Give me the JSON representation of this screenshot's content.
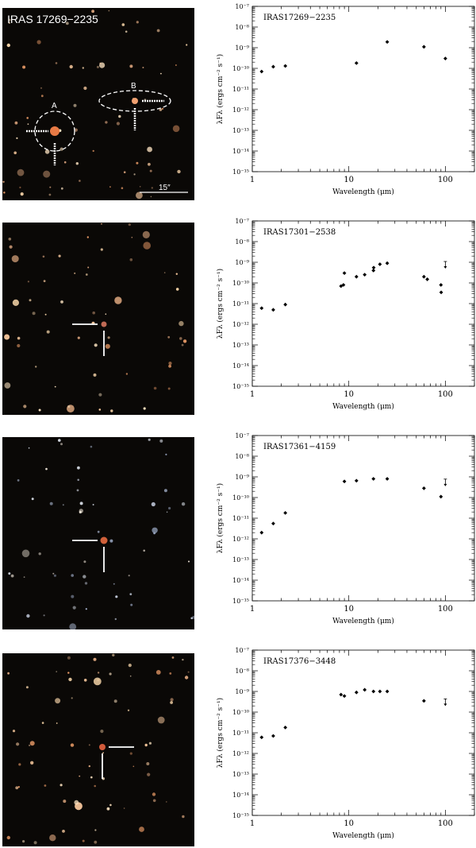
{
  "panels": [
    {
      "image": {
        "caption": "IRAS 17269−2235",
        "marker_a": "A",
        "marker_b": "B",
        "scale_label": "15″"
      },
      "chart_data": {
        "type": "scatter",
        "label": "IRAS17269−2235",
        "xlabel": "Wavelength (μm)",
        "ylabel": "λFλ (ergs cm⁻² s⁻¹)",
        "x_scale": "log",
        "y_scale": "log",
        "xlim": [
          1,
          200
        ],
        "ylim": [
          1e-15,
          1e-07
        ],
        "x_ticks": [
          {
            "v": 1,
            "t": "1"
          },
          {
            "v": 10,
            "t": "10"
          },
          {
            "v": 100,
            "t": "100"
          }
        ],
        "points": [
          [
            1.25,
            7e-11
          ],
          [
            1.65,
            1.2e-10
          ],
          [
            2.2,
            1.3e-10
          ],
          [
            12,
            1.8e-10
          ],
          [
            25,
            1.9e-09
          ],
          [
            60,
            1.1e-09
          ],
          [
            100,
            3e-10
          ]
        ],
        "upper_limits": []
      }
    },
    {
      "image": {},
      "chart_data": {
        "type": "scatter",
        "label": "IRAS17301−2538",
        "xlabel": "Wavelength (μm)",
        "ylabel": "λFλ (ergs cm⁻² s⁻¹)",
        "x_scale": "log",
        "y_scale": "log",
        "xlim": [
          1,
          200
        ],
        "ylim": [
          1e-15,
          1e-07
        ],
        "x_ticks": [
          {
            "v": 1,
            "t": "1"
          },
          {
            "v": 10,
            "t": "10"
          },
          {
            "v": 100,
            "t": "100"
          }
        ],
        "points": [
          [
            1.25,
            6e-12
          ],
          [
            1.65,
            5e-12
          ],
          [
            2.2,
            9e-12
          ],
          [
            8.3,
            7e-11
          ],
          [
            8.8,
            8e-11
          ],
          [
            9,
            3e-10
          ],
          [
            12,
            2e-10
          ],
          [
            14.6,
            2.5e-10
          ],
          [
            18,
            4e-10
          ],
          [
            18.1,
            5.5e-10
          ],
          [
            21,
            8e-10
          ],
          [
            25,
            9e-10
          ],
          [
            60,
            2e-10
          ],
          [
            65,
            1.5e-10
          ],
          [
            90,
            8e-11
          ],
          [
            90.5,
            3.5e-11
          ]
        ],
        "upper_limits": [
          [
            100,
            7e-10
          ]
        ]
      }
    },
    {
      "image": {},
      "chart_data": {
        "type": "scatter",
        "label": "IRAS17361−4159",
        "xlabel": "Wavelength (μm)",
        "ylabel": "λFλ (ergs cm⁻² s⁻¹)",
        "x_scale": "log",
        "y_scale": "log",
        "xlim": [
          1,
          200
        ],
        "ylim": [
          1e-15,
          1e-07
        ],
        "x_ticks": [
          {
            "v": 1,
            "t": "1"
          },
          {
            "v": 10,
            "t": "10"
          },
          {
            "v": 100,
            "t": "100"
          }
        ],
        "points": [
          [
            1.25,
            2e-12
          ],
          [
            1.65,
            5.5e-12
          ],
          [
            2.2,
            1.8e-11
          ],
          [
            9,
            6e-10
          ],
          [
            12,
            6.5e-10
          ],
          [
            18,
            8e-10
          ],
          [
            25,
            8e-10
          ],
          [
            60,
            2.8e-10
          ],
          [
            90,
            1.1e-10
          ]
        ],
        "upper_limits": [
          [
            100,
            5e-10
          ]
        ]
      }
    },
    {
      "image": {},
      "chart_data": {
        "type": "scatter",
        "label": "IRAS17376−3448",
        "xlabel": "Wavelength (μm)",
        "ylabel": "λFλ (ergs cm⁻² s⁻¹)",
        "x_scale": "log",
        "y_scale": "log",
        "xlim": [
          1,
          200
        ],
        "ylim": [
          1e-15,
          1e-07
        ],
        "x_ticks": [
          {
            "v": 1,
            "t": "1"
          },
          {
            "v": 10,
            "t": "10"
          },
          {
            "v": 100,
            "t": "100"
          }
        ],
        "points": [
          [
            1.25,
            6e-12
          ],
          [
            1.65,
            7e-12
          ],
          [
            2.2,
            1.8e-11
          ],
          [
            8.3,
            7e-10
          ],
          [
            9,
            6e-10
          ],
          [
            12,
            9e-10
          ],
          [
            14.6,
            1.2e-09
          ],
          [
            18,
            1e-09
          ],
          [
            21,
            1e-09
          ],
          [
            25,
            1e-09
          ],
          [
            60,
            3.5e-10
          ]
        ],
        "upper_limits": [
          [
            100,
            2.8e-10
          ]
        ]
      }
    }
  ]
}
